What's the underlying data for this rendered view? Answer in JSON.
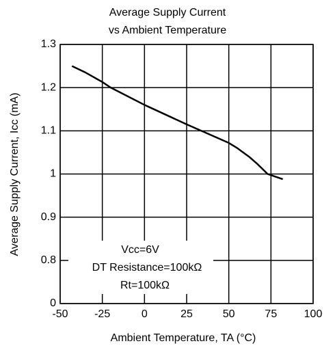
{
  "chart_data": {
    "type": "line",
    "title": [
      "Average Supply Current",
      "vs Ambient Temperature"
    ],
    "x_label": "Ambient Temperature, TA (°C)",
    "y_label": "Average Supply Current, Icc (mA)",
    "annotations": [
      "Vcc=6V",
      "DT Resistance=100kΩ",
      "Rt=100kΩ"
    ],
    "x": [
      -43,
      -35,
      -25,
      -20,
      0,
      25,
      50,
      55,
      62,
      67,
      73,
      82
    ],
    "series": [
      {
        "name": "Icc",
        "color": "#000000",
        "values": [
          1.25,
          1.235,
          1.213,
          1.2,
          1.16,
          1.115,
          1.072,
          1.06,
          1.04,
          1.023,
          1.0,
          0.988
        ]
      }
    ],
    "xlim": [
      -50,
      100
    ],
    "xticks": [
      -50,
      -25,
      0,
      25,
      50,
      75,
      100
    ],
    "ylim": [
      0,
      1.3
    ],
    "yticks": [
      0,
      0.8,
      0.9,
      1,
      1.1,
      1.2,
      1.3
    ],
    "grid": true
  }
}
